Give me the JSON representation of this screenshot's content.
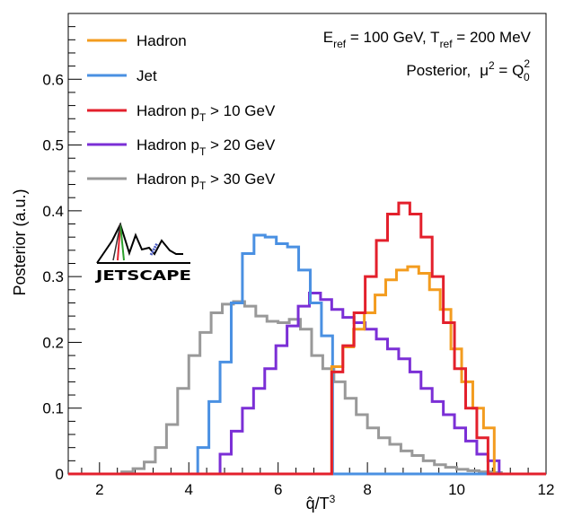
{
  "chart_data": {
    "type": "line",
    "xlabel_main": "q̂/T",
    "xlabel_sup": "3",
    "ylabel": "Posterior (a.u.)",
    "xlim": [
      1.3,
      12
    ],
    "ylim": [
      0,
      0.7
    ],
    "x_ticks": [
      2,
      4,
      6,
      8,
      10,
      12
    ],
    "y_ticks": [
      0,
      0.1,
      0.2,
      0.3,
      0.4,
      0.5,
      0.6
    ],
    "y_tick_labels": [
      "0",
      "0.1",
      "0.2",
      "0.3",
      "0.4",
      "0.5",
      "0.6"
    ],
    "legend_position": "top-left",
    "series": [
      {
        "name": "Hadron",
        "color": "#f39c1f",
        "bin_edges": [
          7.2,
          7.45,
          7.69,
          7.93,
          8.17,
          8.41,
          8.65,
          8.9,
          9.15,
          9.39,
          9.63,
          9.87,
          10.11,
          10.36,
          10.6,
          10.84
        ],
        "values": [
          0.163,
          0.193,
          0.22,
          0.245,
          0.272,
          0.295,
          0.31,
          0.315,
          0.305,
          0.28,
          0.25,
          0.19,
          0.14,
          0.1,
          0.07
        ]
      },
      {
        "name": "Jet",
        "color": "#4a90e2",
        "bin_edges": [
          4.2,
          4.45,
          4.7,
          4.95,
          5.2,
          5.46,
          5.71,
          5.96,
          6.21,
          6.46,
          6.72,
          6.97,
          7.22
        ],
        "values": [
          0.04,
          0.11,
          0.17,
          0.26,
          0.335,
          0.363,
          0.36,
          0.35,
          0.345,
          0.31,
          0.26,
          0.21
        ]
      },
      {
        "name": "Hadron pT > 10 GeV",
        "color": "#e3202c",
        "bin_edges": [
          7.2,
          7.45,
          7.7,
          7.95,
          8.2,
          8.45,
          8.7,
          8.95,
          9.2,
          9.45,
          9.7,
          9.95,
          10.2,
          10.45,
          10.7,
          10.95
        ],
        "values": [
          0.155,
          0.195,
          0.245,
          0.3,
          0.355,
          0.395,
          0.412,
          0.395,
          0.36,
          0.3,
          0.23,
          0.16,
          0.1,
          0.055,
          0.0
        ]
      },
      {
        "name": "Hadron pT > 20 GeV",
        "color": "#7b2fd6",
        "bin_edges": [
          4.7,
          4.95,
          5.2,
          5.45,
          5.7,
          5.95,
          6.2,
          6.45,
          6.7,
          6.95,
          7.2,
          7.45,
          7.7,
          7.95,
          8.2,
          8.45,
          8.7,
          8.95,
          9.2,
          9.45,
          9.7,
          9.95,
          10.2,
          10.45,
          10.7,
          10.95
        ],
        "values": [
          0.03,
          0.065,
          0.1,
          0.13,
          0.16,
          0.195,
          0.225,
          0.255,
          0.275,
          0.265,
          0.25,
          0.238,
          0.23,
          0.22,
          0.205,
          0.19,
          0.175,
          0.155,
          0.13,
          0.11,
          0.09,
          0.07,
          0.05,
          0.03,
          0.02
        ]
      },
      {
        "name": "Hadron pT > 30 GeV",
        "color": "#999999",
        "bin_edges": [
          2.5,
          2.75,
          3.0,
          3.25,
          3.5,
          3.75,
          4.0,
          4.25,
          4.5,
          4.75,
          5.0,
          5.25,
          5.5,
          5.75,
          6.0,
          6.25,
          6.5,
          6.75,
          7.0,
          7.25,
          7.5,
          7.75,
          8.0,
          8.25,
          8.5,
          8.75,
          9.0,
          9.25,
          9.5,
          9.75,
          10.0,
          10.25,
          10.5,
          10.75,
          11.0
        ],
        "values": [
          0.003,
          0.008,
          0.018,
          0.04,
          0.075,
          0.13,
          0.18,
          0.215,
          0.245,
          0.258,
          0.262,
          0.255,
          0.24,
          0.232,
          0.23,
          0.235,
          0.22,
          0.18,
          0.16,
          0.14,
          0.115,
          0.09,
          0.07,
          0.055,
          0.045,
          0.035,
          0.028,
          0.02,
          0.014,
          0.01,
          0.007,
          0.005,
          0.003,
          0.002
        ]
      }
    ]
  },
  "legend": {
    "items": [
      {
        "text": "Hadron",
        "sub": "",
        "rest": ""
      },
      {
        "text": "Jet",
        "sub": "",
        "rest": ""
      },
      {
        "text": "Hadron p",
        "sub": "T",
        "rest": " > 10 GeV"
      },
      {
        "text": "Hadron p",
        "sub": "T",
        "rest": " > 20 GeV"
      },
      {
        "text": "Hadron p",
        "sub": "T",
        "rest": " > 30 GeV"
      }
    ]
  },
  "annotation": {
    "line1_e": "E",
    "line1_e_sub": "ref",
    "line1_mid": " = 100 GeV, T",
    "line1_t_sub": "ref",
    "line1_end": " = 200 MeV",
    "line2_text": "Posterior,",
    "line2_mu": "μ",
    "line2_mu_sup": "2",
    "line2_eq": " = Q",
    "line2_q_sup": "2",
    "line2_q_sub": "0"
  },
  "logo": {
    "text": "JETSCAPE"
  }
}
